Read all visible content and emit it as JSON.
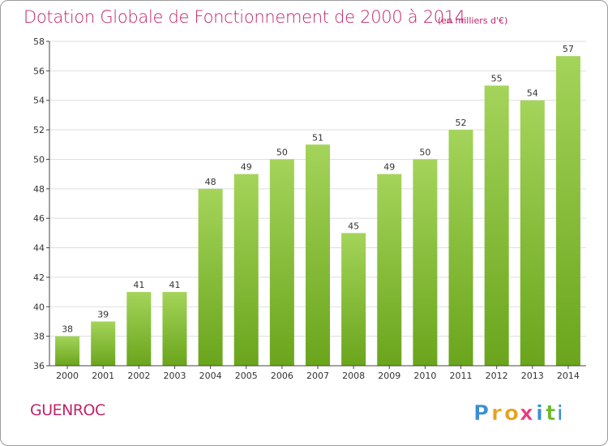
{
  "title": "Dotation Globale de Fonctionnement de 2000 à 2014",
  "subtitle": "(en milliers d'€)",
  "commune": "GUENROC",
  "brand": {
    "name": "Proxiti",
    "letters": [
      "P",
      "r",
      "o",
      "x",
      "i",
      "t",
      "i"
    ],
    "letter_colors": [
      "#3a8fd4",
      "#e8a020",
      "#e8a020",
      "#e83a7a",
      "#3a8fd4",
      "#6cbb2c",
      "#3a8fd4"
    ]
  },
  "colors": {
    "title": "#c0246a",
    "bar_light": "#a4d45a",
    "bar_dark": "#6aa51c",
    "grid": "#dddddd",
    "axis": "#444444"
  },
  "chart_data": {
    "type": "bar",
    "categories": [
      "2000",
      "2001",
      "2002",
      "2003",
      "2004",
      "2005",
      "2006",
      "2007",
      "2008",
      "2009",
      "2010",
      "2011",
      "2012",
      "2013",
      "2014"
    ],
    "values": [
      38,
      39,
      41,
      41,
      48,
      49,
      50,
      51,
      45,
      49,
      50,
      52,
      55,
      54,
      57
    ],
    "ylim": [
      36,
      58
    ],
    "yticks": [
      36,
      38,
      40,
      42,
      44,
      46,
      48,
      50,
      52,
      54,
      56,
      58
    ],
    "grid": true,
    "data_labels": true
  }
}
